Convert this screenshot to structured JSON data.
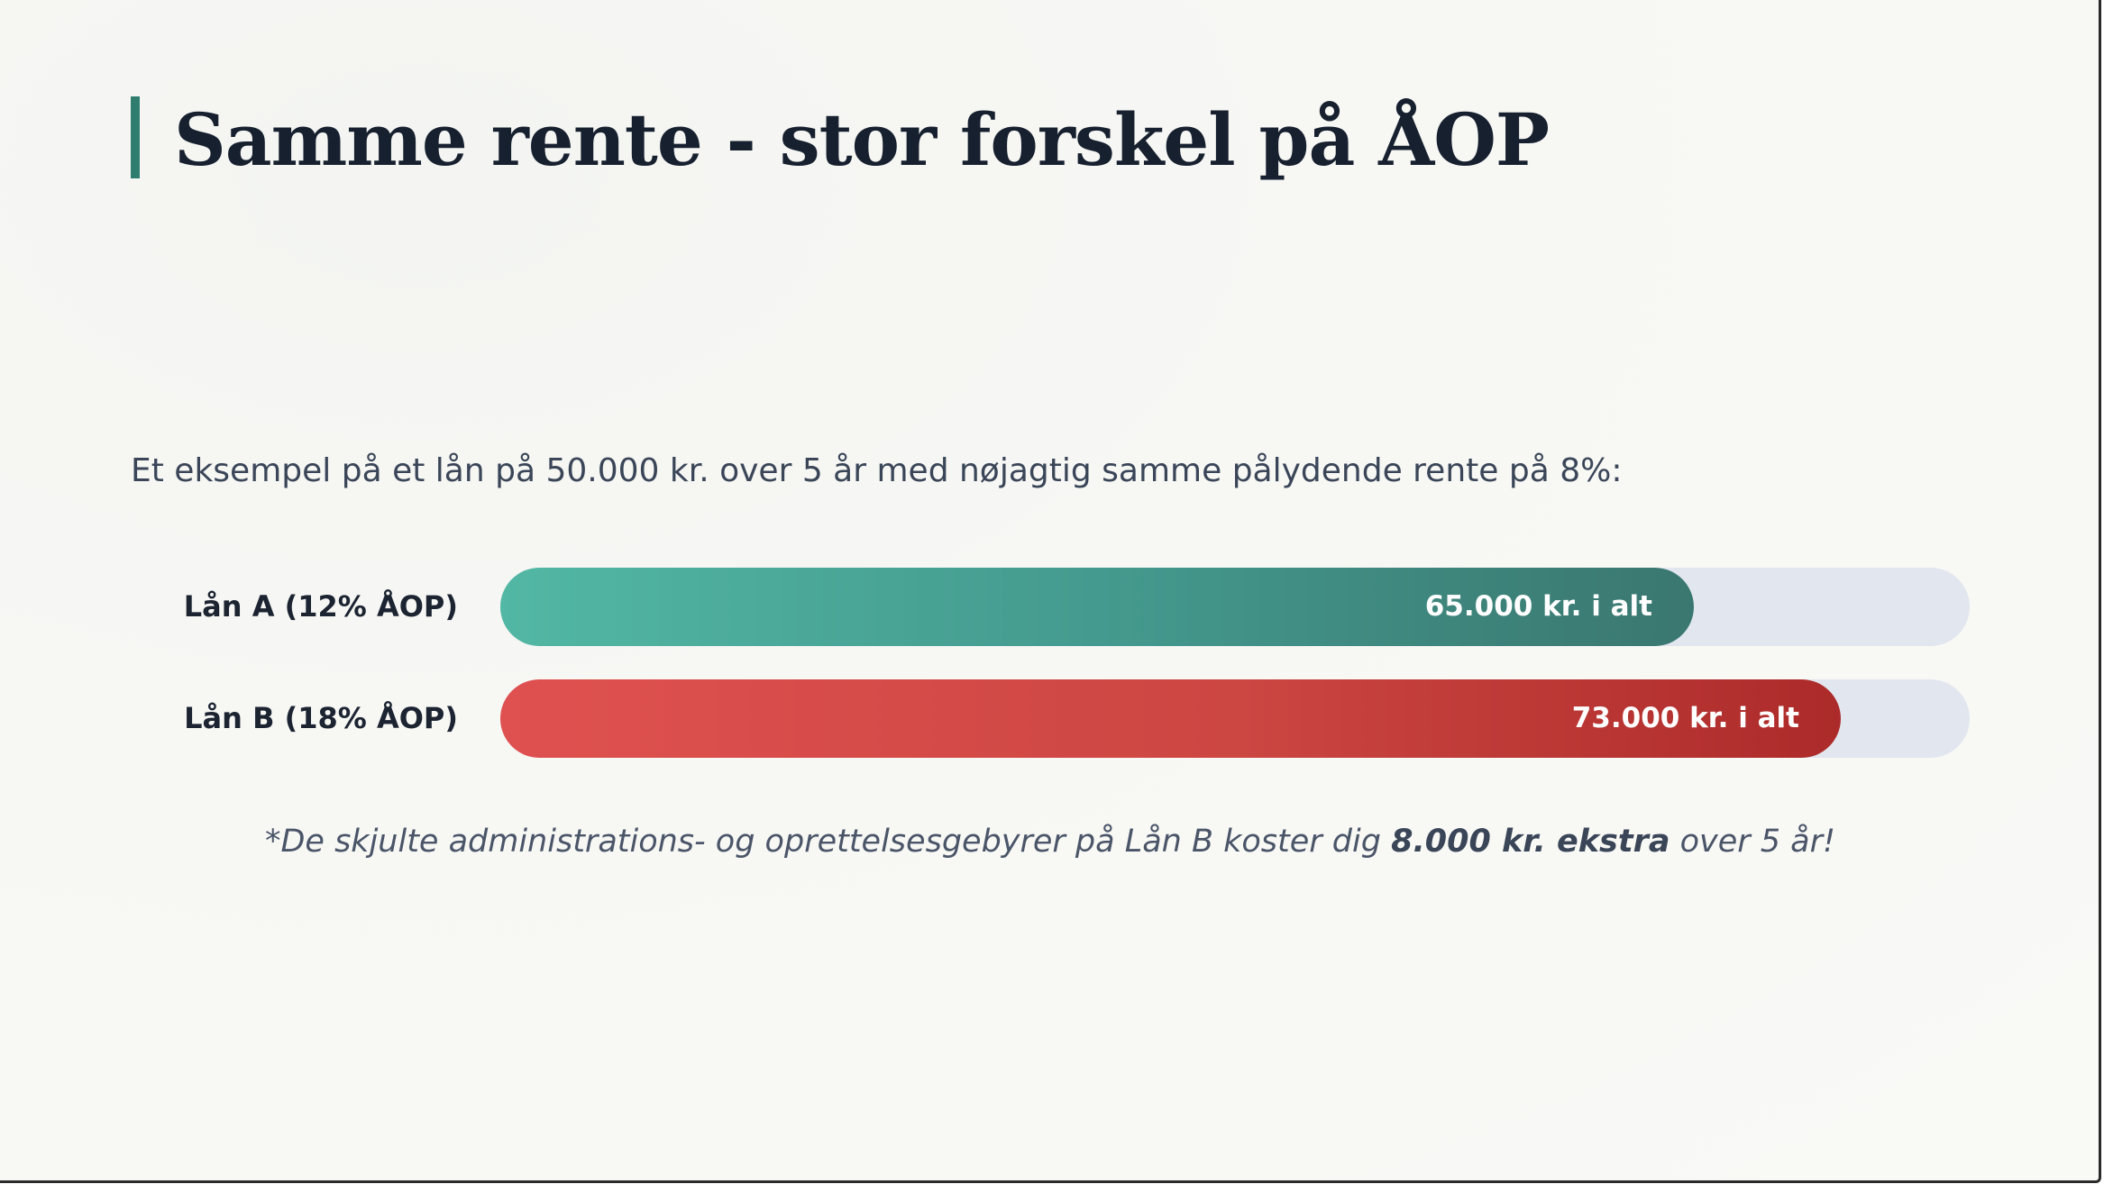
{
  "slide": {
    "title": "Samme rente - stor forskel på ÅOP",
    "intro": "Et eksempel på et lån på 50.000 kr. over 5 år med nøjagtig samme pålydende rente på 8%:",
    "footnote": {
      "before": "*De skjulte administrations- og oprettelsesgebyrer på Lån B koster dig ",
      "bold": "8.000 kr. ekstra",
      "after": " over 5 år!"
    },
    "colors": {
      "accent": "#2f7d6f",
      "teal_start": "#52b7a4",
      "teal_end": "#3a7770",
      "red_start": "#df5150",
      "red_end": "#ac2b2a",
      "track": "#e2e6ee"
    }
  },
  "chart_data": {
    "type": "bar",
    "orientation": "horizontal",
    "categories": [
      "Lån A (12% ÅOP)",
      "Lån B (18% ÅOP)"
    ],
    "values": [
      65000,
      73000
    ],
    "value_labels": [
      "65.000 kr. i alt",
      "73.000 kr. i alt"
    ],
    "xlim": [
      0,
      80000
    ],
    "grid": false
  }
}
